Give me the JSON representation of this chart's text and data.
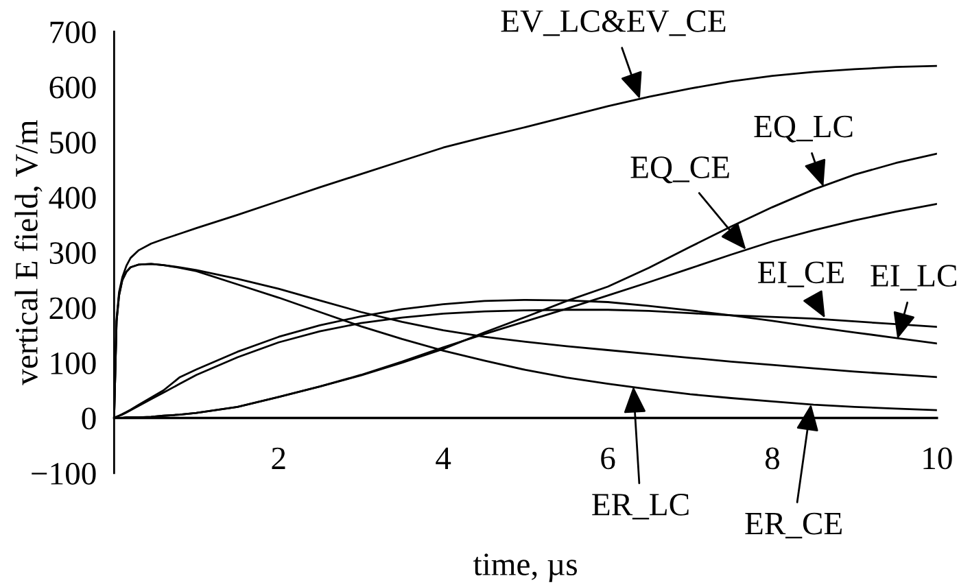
{
  "chart_data": {
    "type": "line",
    "xlabel": "time, µs",
    "ylabel": "vertical E field, V/m",
    "x": [
      0,
      0.03,
      0.06,
      0.1,
      0.15,
      0.2,
      0.3,
      0.45,
      0.6,
      0.8,
      1,
      1.5,
      2,
      2.5,
      3,
      3.5,
      4,
      4.5,
      5,
      5.5,
      6,
      6.5,
      7,
      7.5,
      8,
      8.5,
      9,
      9.5,
      10
    ],
    "series": [
      {
        "color": "#000000",
        "values": [
          0,
          180,
          228,
          255,
          276,
          290,
          304,
          316,
          324,
          334,
          344,
          368,
          393,
          418,
          442,
          466,
          490,
          509,
          527,
          546,
          565,
          582,
          597,
          610,
          620,
          627,
          632,
          636,
          638
        ]
      },
      {
        "color": "#000000",
        "values": [
          0,
          175,
          222,
          250,
          265,
          273,
          278,
          279,
          277,
          272,
          266,
          242,
          218,
          192,
          166,
          143,
          122,
          104,
          87,
          73,
          62,
          52,
          43,
          36,
          30,
          24,
          20,
          17,
          14
        ]
      },
      {
        "color": "#000000",
        "values": [
          0,
          175,
          222,
          250,
          265,
          273,
          278,
          279,
          277,
          273,
          268,
          252,
          234,
          213,
          192,
          174,
          159,
          147,
          138,
          130,
          123,
          116,
          109,
          102,
          96,
          90,
          84,
          79,
          74
        ]
      },
      {
        "color": "#000000",
        "values": [
          0,
          2,
          4,
          7,
          11,
          15,
          24,
          37,
          50,
          74,
          88,
          120,
          147,
          168,
          184,
          197,
          206,
          212,
          214,
          213,
          210,
          203,
          195,
          186,
          176,
          165,
          155,
          145,
          135
        ]
      },
      {
        "color": "#000000",
        "values": [
          0,
          2,
          4,
          6,
          10,
          14,
          22,
          34,
          46,
          62,
          78,
          110,
          137,
          157,
          172,
          182,
          189,
          193,
          195,
          196,
          196,
          194,
          190,
          186,
          183,
          180,
          175,
          170,
          165
        ]
      },
      {
        "color": "#000000",
        "values": [
          0,
          0,
          0,
          0,
          1,
          1,
          1,
          2,
          4,
          6,
          9,
          20,
          38,
          57,
          77,
          100,
          125,
          155,
          183,
          212,
          238,
          272,
          310,
          347,
          382,
          414,
          441,
          462,
          479
        ]
      },
      {
        "color": "#000000",
        "values": [
          0,
          0,
          0,
          0,
          1,
          1,
          1,
          2,
          4,
          6,
          9,
          20,
          38,
          57,
          78,
          102,
          128,
          152,
          175,
          198,
          222,
          246,
          271,
          296,
          320,
          340,
          358,
          374,
          388
        ]
      }
    ],
    "xlim": [
      0,
      10
    ],
    "ylim": [
      -100,
      700
    ],
    "xticks": [
      2,
      4,
      6,
      8,
      10
    ],
    "yticks": [
      {
        "value": -100,
        "label": "−100"
      },
      0,
      100,
      200,
      300,
      400,
      500,
      600,
      700
    ],
    "line_style": "solid",
    "grid": false,
    "annotations": [
      {
        "text": "EV_LC&EV_CE",
        "x": 6.39,
        "y": 578
      },
      {
        "text": "EQ_LC",
        "x": 8.62,
        "y": 419
      },
      {
        "text": "EQ_CE",
        "x": 7.68,
        "y": 305
      },
      {
        "text": "EI_CE",
        "x": 8.64,
        "y": 181
      },
      {
        "text": "EI_LC",
        "x": 9.52,
        "y": 143
      },
      {
        "text": "ER_LC",
        "x": 6.31,
        "y": 57
      },
      {
        "text": "ER_CE",
        "x": 8.47,
        "y": 25
      }
    ]
  }
}
